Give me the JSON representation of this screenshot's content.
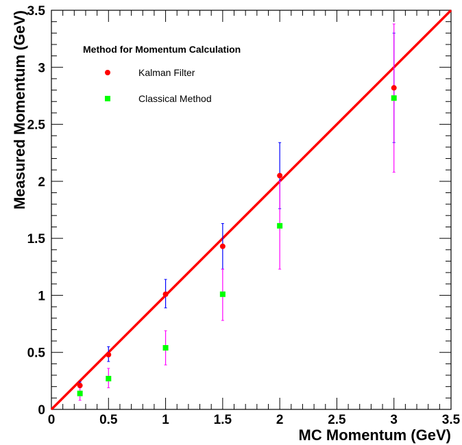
{
  "chart_data": {
    "type": "scatter",
    "title": "",
    "xlabel": "MC Momentum (GeV)",
    "ylabel": "Measured Momentum (GeV)",
    "xlim": [
      0,
      3.5
    ],
    "ylim": [
      0,
      3.5
    ],
    "xticks": [
      "0",
      "0.5",
      "1",
      "1.5",
      "2",
      "2.5",
      "3",
      "3.5"
    ],
    "yticks": [
      "0",
      "0.5",
      "1",
      "1.5",
      "2",
      "2.5",
      "3",
      "3.5"
    ],
    "grid": false,
    "legend": {
      "title": "Method for Momentum Calculation",
      "placement": "top-left"
    },
    "series": [
      {
        "name": "Kalman Filter",
        "marker": "circle",
        "color": "#ff0000",
        "error_color": "#0000ff",
        "x": [
          0.25,
          0.5,
          1.0,
          1.5,
          2.0,
          3.0
        ],
        "y": [
          0.21,
          0.48,
          1.01,
          1.43,
          2.05,
          2.82
        ],
        "yerr_low": [
          0.19,
          0.42,
          0.89,
          1.23,
          1.76,
          2.34
        ],
        "yerr_high": [
          0.24,
          0.55,
          1.14,
          1.63,
          2.34,
          3.3
        ]
      },
      {
        "name": "Classical Method",
        "marker": "square",
        "color": "#00ff00",
        "error_color": "#ff00ff",
        "x": [
          0.25,
          0.5,
          1.0,
          1.5,
          2.0,
          3.0
        ],
        "y": [
          0.14,
          0.27,
          0.54,
          1.01,
          1.61,
          2.73
        ],
        "yerr_low": [
          0.08,
          0.19,
          0.39,
          0.78,
          1.23,
          2.08
        ],
        "yerr_high": [
          0.2,
          0.36,
          0.69,
          1.23,
          2.0,
          3.38
        ]
      }
    ],
    "fit_line": {
      "color": "#ff0000",
      "x": [
        0.0,
        3.5
      ],
      "y": [
        0.0,
        3.5
      ]
    }
  }
}
